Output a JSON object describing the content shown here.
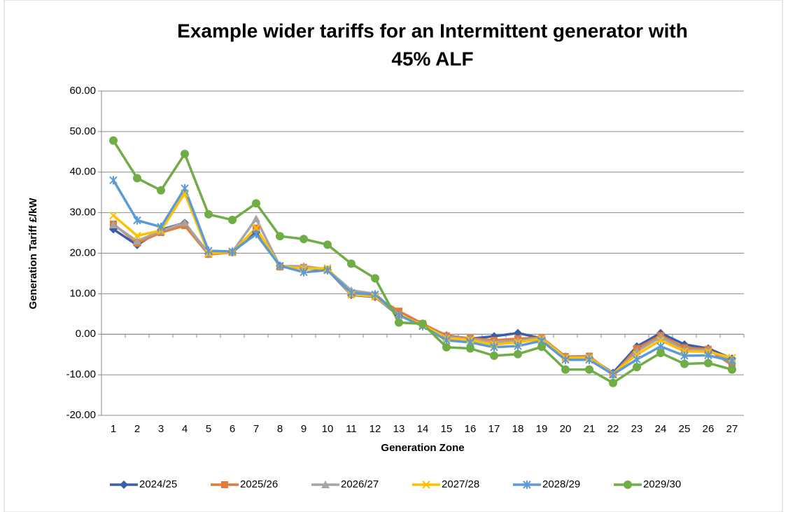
{
  "chart_data": {
    "type": "line",
    "title": [
      "Example wider tariffs for an Intermittent generator with",
      "45% ALF"
    ],
    "x_label": "Generation Zone",
    "y_label": "Generation Tariff £/kW",
    "categories": [
      "1",
      "2",
      "3",
      "4",
      "5",
      "6",
      "7",
      "8",
      "9",
      "10",
      "11",
      "12",
      "13",
      "14",
      "15",
      "16",
      "17",
      "18",
      "19",
      "20",
      "21",
      "22",
      "23",
      "24",
      "25",
      "26",
      "27"
    ],
    "ylim": [
      -20,
      60
    ],
    "yticks": [
      {
        "value": 60,
        "label": "60.00"
      },
      {
        "value": 50,
        "label": "50.00"
      },
      {
        "value": 40,
        "label": "40.00"
      },
      {
        "value": 30,
        "label": "30.00"
      },
      {
        "value": 20,
        "label": "20.00"
      },
      {
        "value": 10,
        "label": "10.00"
      },
      {
        "value": 0,
        "label": "0.00"
      },
      {
        "value": -10,
        "label": "-10.00"
      },
      {
        "value": -20,
        "label": "-20.00"
      }
    ],
    "grid": true,
    "legend": "bottom",
    "series": [
      {
        "name": "2024/25",
        "color": "#3c5ea8",
        "marker": "diamond",
        "values": [
          25.9,
          22.0,
          25.8,
          27.5,
          19.8,
          20.2,
          25.2,
          16.9,
          16.3,
          15.9,
          9.7,
          9.2,
          4.6,
          2.5,
          -0.3,
          -1.1,
          -0.5,
          0.3,
          -1.0,
          -5.5,
          -5.8,
          -9.5,
          -3.0,
          0.3,
          -2.5,
          -3.5,
          -6.0
        ]
      },
      {
        "name": "2025/26",
        "color": "#e07b39",
        "marker": "square",
        "values": [
          27.2,
          22.5,
          25.1,
          26.8,
          19.7,
          20.2,
          26.2,
          16.6,
          16.5,
          16.0,
          9.8,
          9.3,
          5.7,
          2.6,
          -0.4,
          -1.0,
          -1.5,
          -1.1,
          -0.8,
          -5.5,
          -5.4,
          -10.0,
          -3.5,
          -0.3,
          -3.3,
          -3.7,
          -7.6
        ]
      },
      {
        "name": "2026/27",
        "color": "#a5a5a5",
        "marker": "triangle",
        "values": [
          27.0,
          23.0,
          25.5,
          27.5,
          20.0,
          20.3,
          28.5,
          16.8,
          16.8,
          16.0,
          10.8,
          10.0,
          4.8,
          2.2,
          -0.7,
          -1.2,
          -1.9,
          -1.6,
          -0.9,
          -5.7,
          -5.6,
          -10.0,
          -4.2,
          -0.7,
          -3.8,
          -4.0,
          -6.4
        ]
      },
      {
        "name": "2027/28",
        "color": "#ffc000",
        "marker": "x",
        "values": [
          29.3,
          24.3,
          25.6,
          34.8,
          20.0,
          20.2,
          26.2,
          16.8,
          16.2,
          16.3,
          9.8,
          9.3,
          4.8,
          2.3,
          -1.0,
          -1.4,
          -2.5,
          -2.0,
          -1.1,
          -5.8,
          -5.8,
          -9.7,
          -5.0,
          -1.5,
          -4.2,
          -4.3,
          -5.8
        ]
      },
      {
        "name": "2028/29",
        "color": "#5b9bd5",
        "marker": "asterisk",
        "values": [
          38.0,
          28.1,
          26.5,
          36.0,
          20.6,
          20.4,
          24.7,
          16.9,
          15.3,
          15.8,
          10.2,
          9.8,
          4.7,
          2.0,
          -1.5,
          -2.0,
          -3.2,
          -2.9,
          -1.6,
          -6.3,
          -6.3,
          -9.9,
          -6.2,
          -3.0,
          -5.3,
          -5.2,
          -6.6
        ]
      },
      {
        "name": "2029/30",
        "color": "#70ad47",
        "marker": "circle",
        "values": [
          47.8,
          38.5,
          35.5,
          44.5,
          29.6,
          28.2,
          32.3,
          24.2,
          23.5,
          22.1,
          17.4,
          13.8,
          2.9,
          2.6,
          -3.2,
          -3.5,
          -5.3,
          -4.9,
          -3.1,
          -8.7,
          -8.7,
          -12.0,
          -8.1,
          -4.6,
          -7.3,
          -7.1,
          -8.7
        ]
      }
    ]
  }
}
